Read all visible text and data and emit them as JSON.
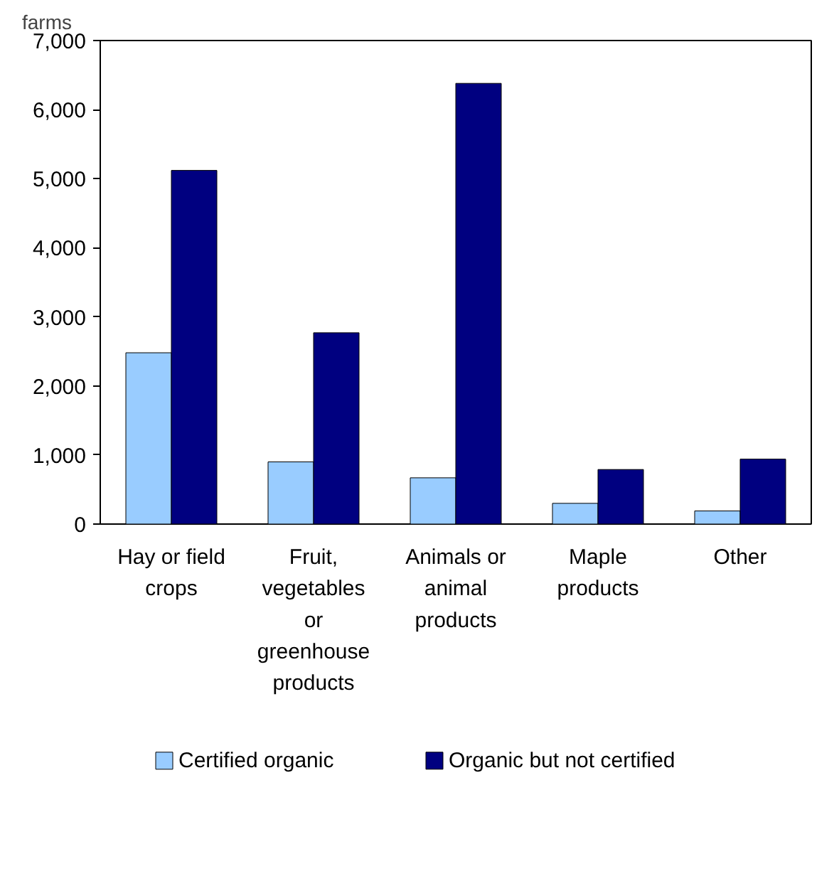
{
  "chart_data": {
    "type": "bar",
    "ylabel": "farms",
    "categories": [
      "Hay or field crops",
      "Fruit, vegetables or greenhouse products",
      "Animals or animal products",
      "Maple products",
      "Other"
    ],
    "series": [
      {
        "name": "Certified organic",
        "color": "#99ccff",
        "values": [
          2480,
          900,
          670,
          300,
          190
        ]
      },
      {
        "name": "Organic but not certified",
        "color": "#000080",
        "values": [
          5120,
          2770,
          6380,
          790,
          940
        ]
      }
    ],
    "ylim": [
      0,
      7000
    ],
    "yticks": [
      {
        "value": 0,
        "label": "0"
      },
      {
        "value": 1000,
        "label": "1,000"
      },
      {
        "value": 2000,
        "label": "2,000"
      },
      {
        "value": 3000,
        "label": "3,000"
      },
      {
        "value": 4000,
        "label": "4,000"
      },
      {
        "value": 5000,
        "label": "5,000"
      },
      {
        "value": 6000,
        "label": "6,000"
      },
      {
        "value": 7000,
        "label": "7,000"
      }
    ],
    "grid": false,
    "legend": "bottom"
  }
}
